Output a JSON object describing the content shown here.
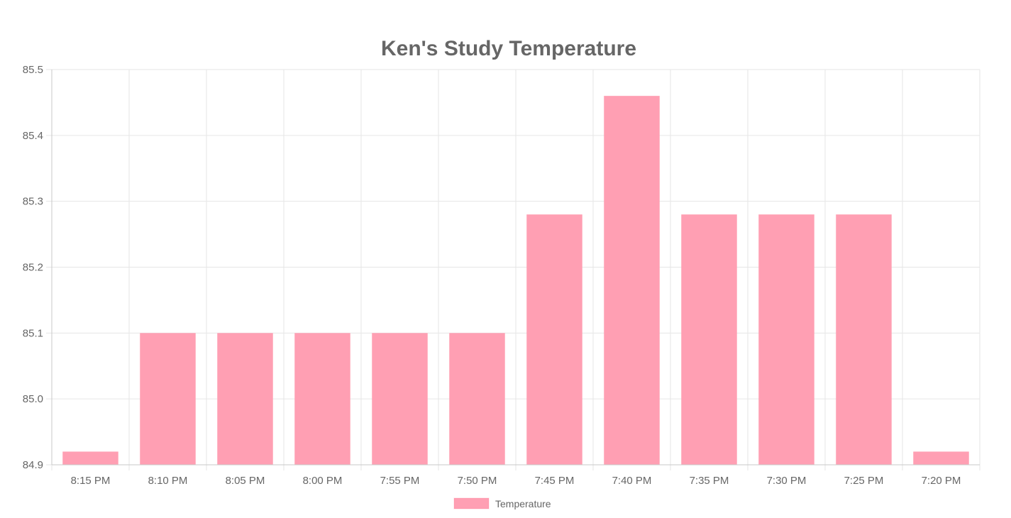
{
  "chart_data": {
    "type": "bar",
    "title": "Ken's Study Temperature",
    "xlabel": "",
    "ylabel": "",
    "categories": [
      "8:15 PM",
      "8:10 PM",
      "8:05 PM",
      "8:00 PM",
      "7:55 PM",
      "7:50 PM",
      "7:45 PM",
      "7:40 PM",
      "7:35 PM",
      "7:30 PM",
      "7:25 PM",
      "7:20 PM"
    ],
    "series": [
      {
        "name": "Temperature",
        "values": [
          84.92,
          85.1,
          85.1,
          85.1,
          85.1,
          85.1,
          85.28,
          85.46,
          85.28,
          85.28,
          85.28,
          84.92
        ],
        "color": "#ff9fb3"
      }
    ],
    "ylim": [
      84.9,
      85.5
    ],
    "yticks": [
      "84.9",
      "85.0",
      "85.1",
      "85.2",
      "85.3",
      "85.4",
      "85.5"
    ],
    "grid": true,
    "legend_position": "bottom"
  }
}
